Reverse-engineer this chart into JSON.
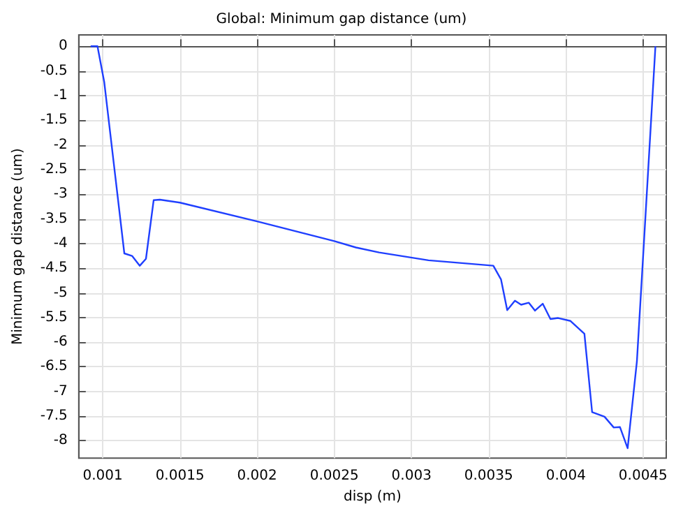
{
  "chart_data": {
    "type": "line",
    "title": "Global: Minimum gap distance (um)",
    "xlabel": "disp (m)",
    "ylabel": "Minimum gap distance (um)",
    "series": [
      {
        "color": "#1f3fff",
        "x": [
          0.000922,
          0.000966,
          0.00101,
          0.00114,
          0.00119,
          0.00124,
          0.00128,
          0.00133,
          0.00137,
          0.0015,
          0.002,
          0.0025,
          0.00264,
          0.00279,
          0.00311,
          0.00353,
          0.00358,
          0.00362,
          0.00367,
          0.00371,
          0.00376,
          0.0038,
          0.00385,
          0.0039,
          0.00395,
          0.00403,
          0.00412,
          0.00417,
          0.00425,
          0.00431,
          0.00435,
          0.0044,
          0.00446,
          0.00451,
          0.00458
        ],
        "values": [
          0,
          0,
          -0.73,
          -4.2,
          -4.25,
          -4.45,
          -4.31,
          -3.12,
          -3.11,
          -3.17,
          -3.55,
          -3.95,
          -4.08,
          -4.18,
          -4.34,
          -4.45,
          -4.73,
          -5.35,
          -5.16,
          -5.24,
          -5.2,
          -5.36,
          -5.22,
          -5.53,
          -5.51,
          -5.57,
          -5.83,
          -7.42,
          -7.51,
          -7.73,
          -7.72,
          -8.15,
          -6.39,
          -3.74,
          0
        ]
      }
    ],
    "xlim": [
      0.000845,
      0.00465
    ],
    "xticks": [
      0.001,
      0.0015,
      0.002,
      0.0025,
      0.003,
      0.0035,
      0.004,
      0.0045
    ],
    "ylim": [
      -8.35,
      0.23
    ],
    "yticks": [
      0,
      -0.5,
      -1,
      -1.5,
      -2,
      -2.5,
      -3,
      -3.5,
      -4,
      -4.5,
      -5,
      -5.5,
      -6,
      -6.5,
      -7,
      -7.5,
      -8
    ],
    "grid": true,
    "marker": "none",
    "line_style": "solid"
  }
}
